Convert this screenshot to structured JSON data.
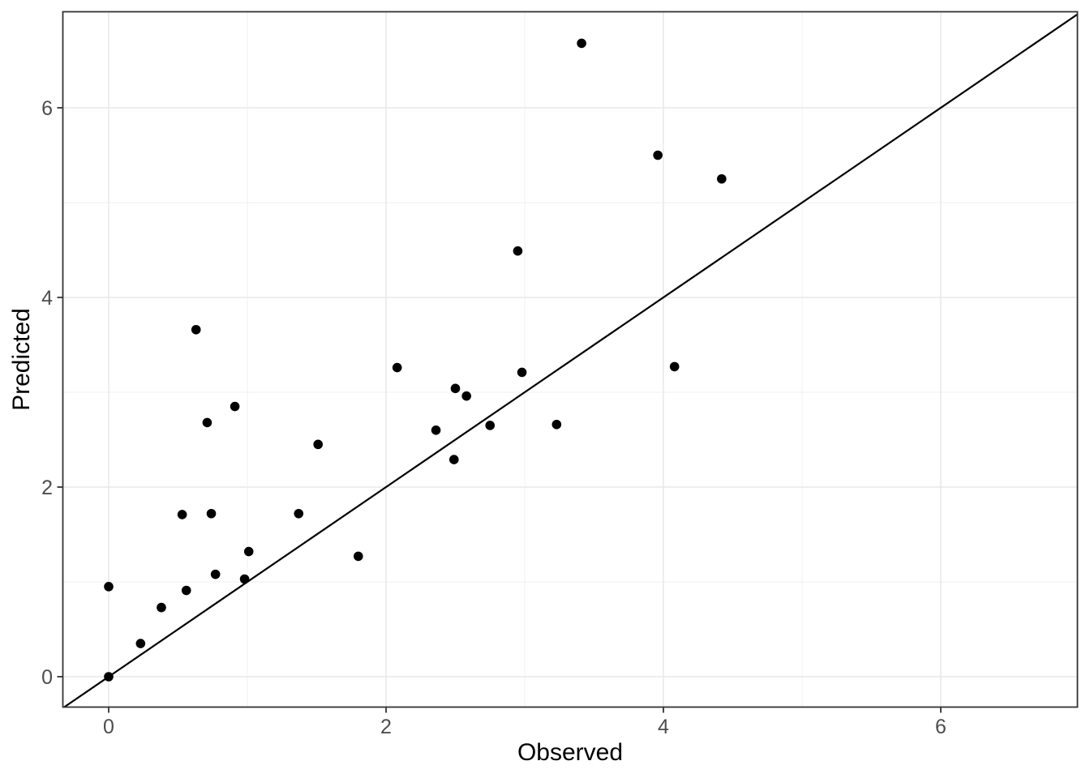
{
  "chart_data": {
    "type": "scatter",
    "title": "",
    "xlabel": "Observed",
    "ylabel": "Predicted",
    "x_ticks": [
      0,
      2,
      4,
      6
    ],
    "y_ticks": [
      0,
      2,
      4,
      6
    ],
    "x_minor_ticks": [
      1,
      3,
      5
    ],
    "y_minor_ticks": [
      1,
      3,
      5
    ],
    "xlim": [
      -0.33,
      6.99
    ],
    "ylim": [
      -0.32,
      7.01
    ],
    "grid": "major+minor",
    "legend": "none",
    "reference_line": {
      "type": "identity",
      "slope": 1,
      "intercept": 0
    },
    "points": [
      [
        0.0,
        0.0
      ],
      [
        0.0,
        0.95
      ],
      [
        0.23,
        0.35
      ],
      [
        0.38,
        0.73
      ],
      [
        0.53,
        1.71
      ],
      [
        0.56,
        0.91
      ],
      [
        0.63,
        3.66
      ],
      [
        0.71,
        2.68
      ],
      [
        0.74,
        1.72
      ],
      [
        0.77,
        1.08
      ],
      [
        0.91,
        2.85
      ],
      [
        0.98,
        1.03
      ],
      [
        1.01,
        1.32
      ],
      [
        1.37,
        1.72
      ],
      [
        1.51,
        2.45
      ],
      [
        1.8,
        1.27
      ],
      [
        2.08,
        3.26
      ],
      [
        2.36,
        2.6
      ],
      [
        2.49,
        2.29
      ],
      [
        2.5,
        3.04
      ],
      [
        2.58,
        2.96
      ],
      [
        2.75,
        2.65
      ],
      [
        2.95,
        4.49
      ],
      [
        2.98,
        3.21
      ],
      [
        3.23,
        2.66
      ],
      [
        3.41,
        6.68
      ],
      [
        3.96,
        5.5
      ],
      [
        4.08,
        3.27
      ],
      [
        4.42,
        5.25
      ]
    ],
    "colors": {
      "background": "#ffffff",
      "panel_background": "#ffffff",
      "grid_major": "#e8e8e8",
      "grid_minor": "#efefef",
      "panel_border": "#333333",
      "tick_mark": "#333333",
      "tick_label": "#4d4d4d",
      "axis_title": "#000000",
      "point": "#000000",
      "reference_line": "#000000"
    }
  }
}
